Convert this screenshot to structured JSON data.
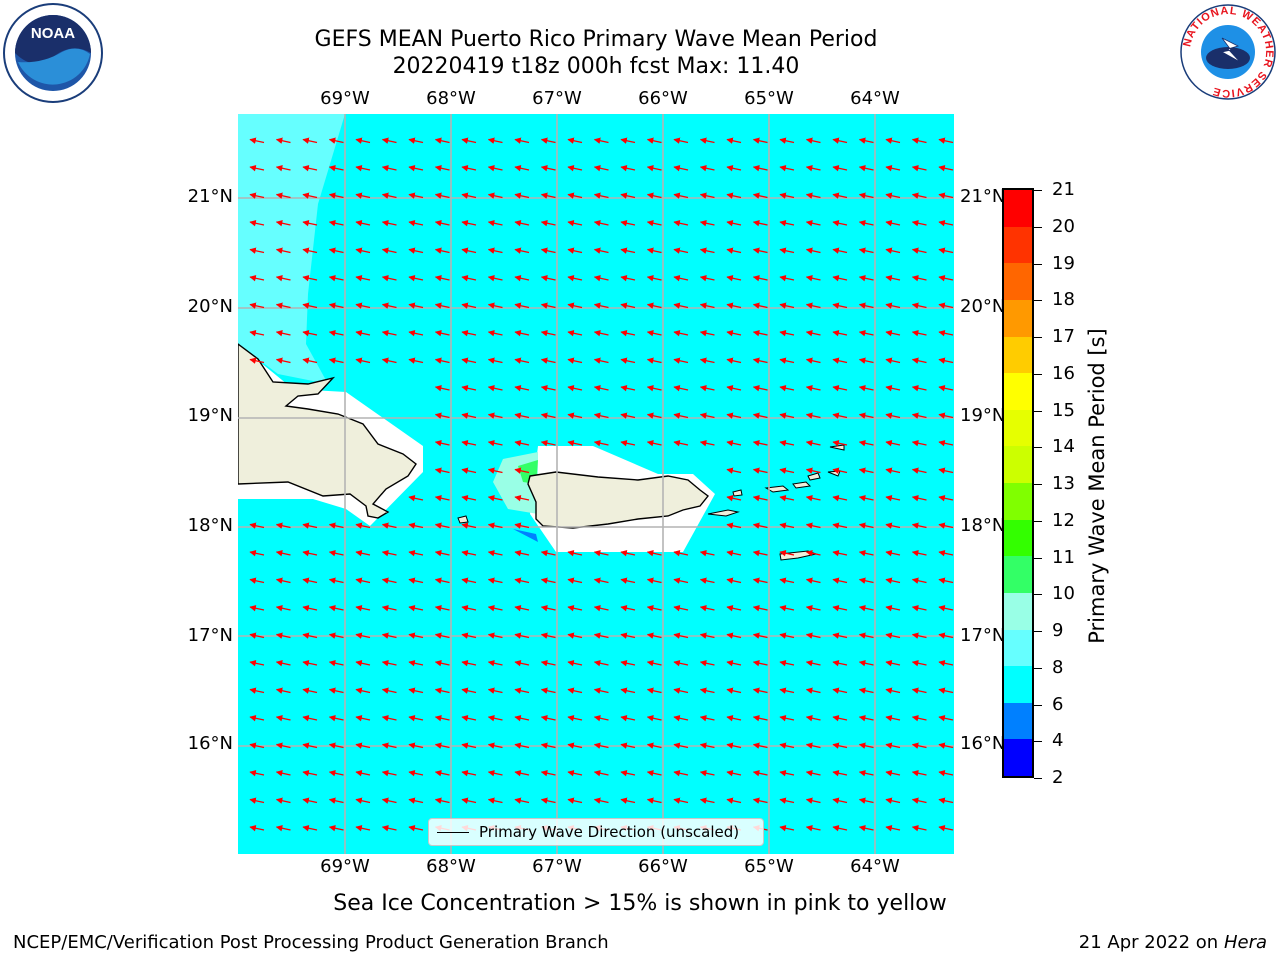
{
  "header": {
    "title_line1": "GEFS MEAN Puerto Rico Primary Wave Mean Period",
    "title_line2": "20220419 t18z 000h fcst   Max: 11.40"
  },
  "logos": {
    "noaa": {
      "icon": "noaa-logo-icon",
      "text": "NOAA"
    },
    "nws": {
      "icon": "nws-logo-icon",
      "text": "NATIONAL WEATHER SERVICE"
    }
  },
  "map": {
    "lon_labels": [
      "69°W",
      "68°W",
      "67°W",
      "66°W",
      "65°W",
      "64°W"
    ],
    "lat_labels": [
      "21°N",
      "20°N",
      "19°N",
      "18°N",
      "17°N",
      "16°N"
    ],
    "colors": {
      "ocean": "#00ffff",
      "ocean_light": "#66ffff",
      "land": "#efefdc",
      "arrow": "#ff0000",
      "grid": "#b4b4b4",
      "coast": "#000000"
    }
  },
  "colorbar": {
    "label": "Primary Wave Mean Period [s]",
    "ticks": [
      "21",
      "20",
      "19",
      "18",
      "17",
      "16",
      "15",
      "14",
      "13",
      "12",
      "11",
      "10",
      "9",
      "8",
      "6",
      "4",
      "2"
    ],
    "colors": [
      "#0000ff",
      "#0080ff",
      "#00ffff",
      "#66ffff",
      "#99ffe6",
      "#33ff66",
      "#33ff00",
      "#80ff00",
      "#ccff00",
      "#e6ff00",
      "#ffff00",
      "#ffcc00",
      "#ff9900",
      "#ff6600",
      "#ff3300",
      "#ff0000"
    ]
  },
  "legend": {
    "label": "Primary Wave Direction (unscaled)"
  },
  "notes": {
    "sea_ice": "Sea Ice Concentration > 15% is shown in pink to yellow"
  },
  "footer": {
    "left": "NCEP/EMC/Verification Post Processing Product Generation Branch",
    "right_prefix": "21 Apr 2022 on ",
    "right_host": "Hera"
  }
}
